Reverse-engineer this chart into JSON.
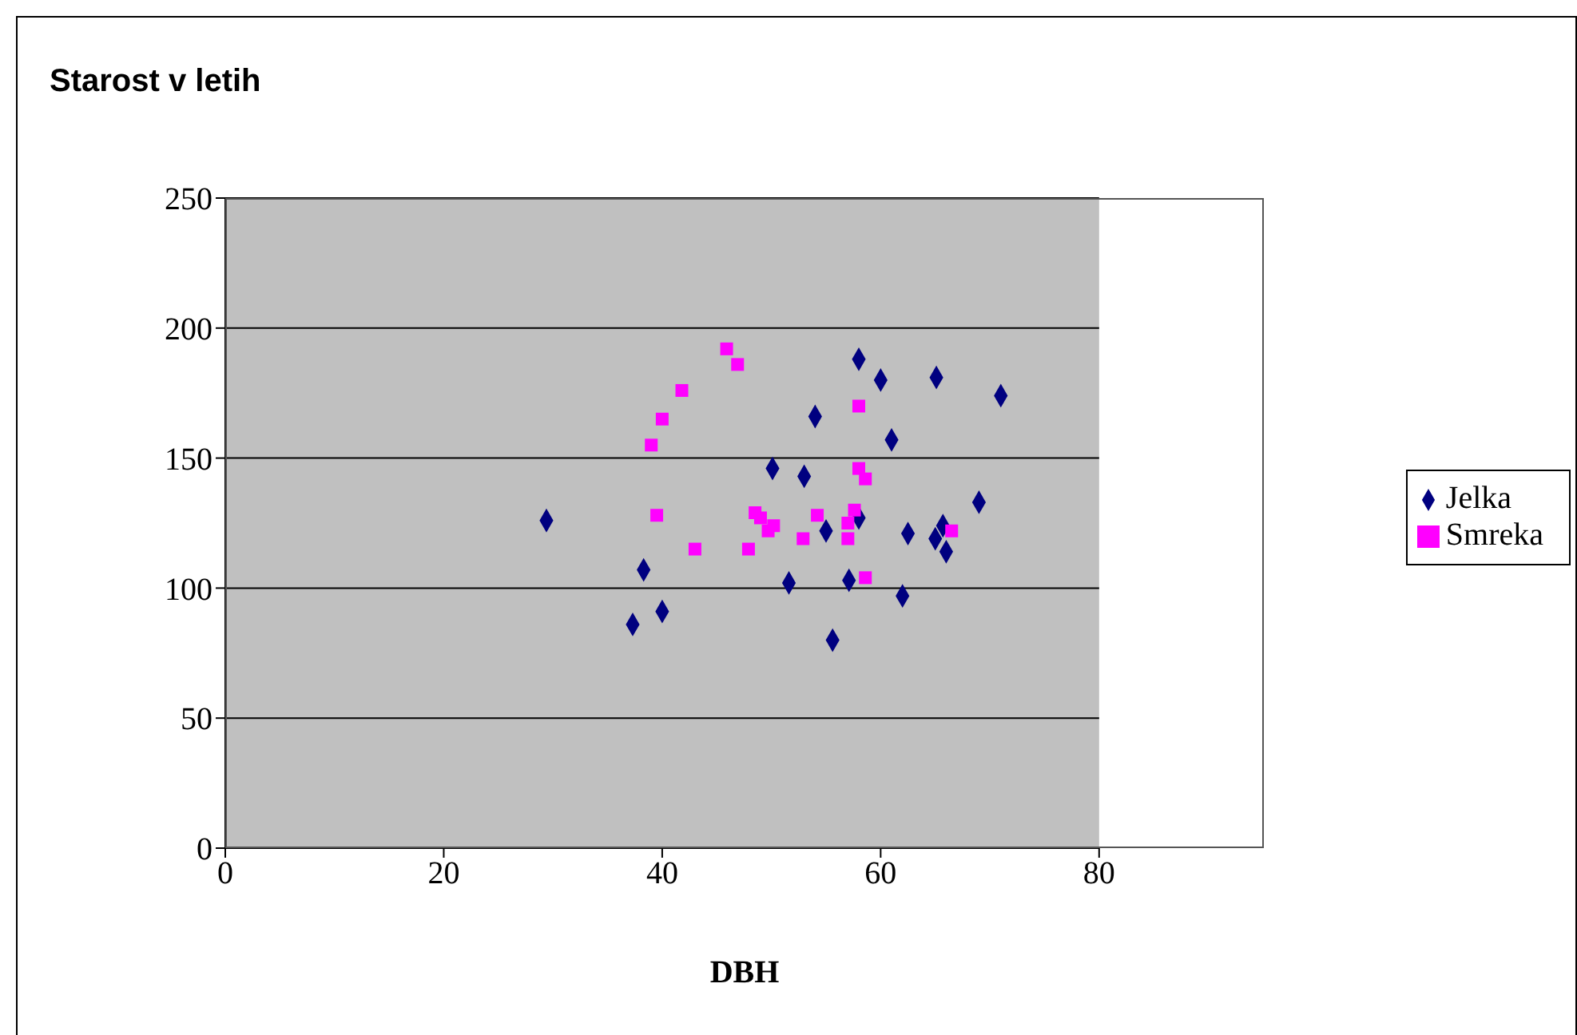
{
  "chart_data": {
    "type": "scatter",
    "title": "Starost v letih",
    "xlabel": "DBH",
    "xlim": [
      0,
      80
    ],
    "xticks": [
      0,
      20,
      40,
      60,
      80
    ],
    "ylim": [
      0,
      250
    ],
    "yticks": [
      0,
      50,
      100,
      150,
      200,
      250
    ],
    "grid": "y",
    "legend": "right",
    "series": [
      {
        "name": "Jelka",
        "color": "#000080",
        "marker": "diamond",
        "x": [
          29.4,
          38.3,
          37.3,
          40,
          50.1,
          51.6,
          53,
          54,
          55,
          55.6,
          57.1,
          58,
          58,
          60,
          61,
          62,
          62.5,
          65.1,
          65,
          65.7,
          66,
          69,
          71
        ],
        "values": [
          126,
          107,
          86,
          91,
          146,
          102,
          143,
          166,
          122,
          80,
          103,
          188,
          127,
          180,
          157,
          97,
          121,
          181,
          119,
          124,
          114,
          133,
          174
        ]
      },
      {
        "name": "Smreka",
        "color": "#ff00ff",
        "marker": "square",
        "x": [
          45.9,
          46.9,
          41.8,
          40,
          39,
          39.5,
          43,
          47.9,
          48.5,
          49,
          49.7,
          50.2,
          52.9,
          54.2,
          57,
          57,
          57.6,
          58,
          58,
          58.6,
          58.6,
          66.5
        ],
        "values": [
          192,
          186,
          176,
          165,
          155,
          128,
          115,
          115,
          129,
          127,
          122,
          124,
          119,
          128,
          125,
          119,
          130,
          170,
          146,
          142,
          104,
          122
        ]
      }
    ]
  }
}
